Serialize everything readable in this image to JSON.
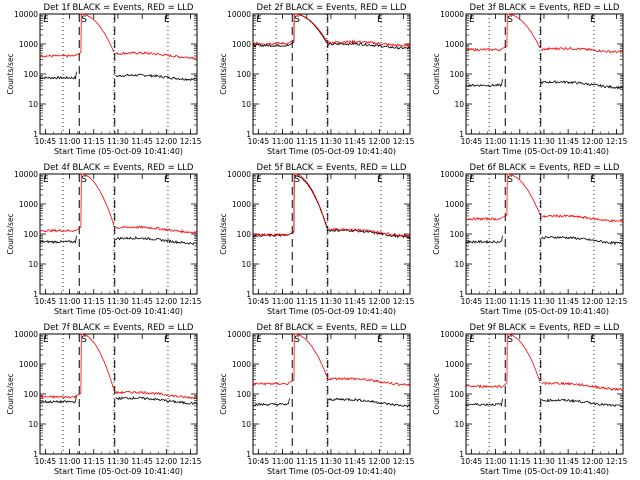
{
  "chart_data": [
    {
      "type": "line",
      "title": "Det 1f BLACK = Events, RED = LLD",
      "xlabel": "Start Time (05-Oct-09 10:41:40)",
      "ylabel": "Counts/sec",
      "series": [
        {
          "name": "Events",
          "color": "#000000",
          "pre": 75,
          "peak": null,
          "post": 85,
          "post_end": 75
        },
        {
          "name": "LLD",
          "color": "#ff0000",
          "pre": 400,
          "peak": 10000,
          "post": 470,
          "post_end": 400
        }
      ]
    },
    {
      "type": "line",
      "title": "Det 2f BLACK = Events, RED = LLD",
      "xlabel": "Start Time (05-Oct-09 10:41:40)",
      "ylabel": "Counts/sec",
      "series": [
        {
          "name": "Events",
          "color": "#000000",
          "pre": 900,
          "peak": 10000,
          "post": 950,
          "post_end": 820
        },
        {
          "name": "LLD",
          "color": "#ff0000",
          "pre": 1050,
          "peak": 10000,
          "post": 1100,
          "post_end": 1000
        }
      ]
    },
    {
      "type": "line",
      "title": "Det 3f BLACK = Events, RED = LLD",
      "xlabel": "Start Time (05-Oct-09 10:41:40)",
      "ylabel": "Counts/sec",
      "series": [
        {
          "name": "Events",
          "color": "#000000",
          "pre": 42,
          "peak": null,
          "post": 52,
          "post_end": 40
        },
        {
          "name": "LLD",
          "color": "#ff0000",
          "pre": 650,
          "peak": 10000,
          "post": 650,
          "post_end": 620
        }
      ]
    },
    {
      "type": "line",
      "title": "Det 4f BLACK = Events, RED = LLD",
      "xlabel": "Start Time (05-Oct-09 10:41:40)",
      "ylabel": "Counts/sec",
      "series": [
        {
          "name": "Events",
          "color": "#000000",
          "pre": 55,
          "peak": null,
          "post": 70,
          "post_end": 55
        },
        {
          "name": "LLD",
          "color": "#ff0000",
          "pre": 130,
          "peak": 10000,
          "post": 160,
          "post_end": 130
        }
      ]
    },
    {
      "type": "line",
      "title": "Det 5f BLACK = Events, RED = LLD",
      "xlabel": "Start Time (05-Oct-09 10:41:40)",
      "ylabel": "Counts/sec",
      "series": [
        {
          "name": "Events",
          "color": "#000000",
          "pre": 90,
          "peak": 9000,
          "post": 130,
          "post_end": 90
        },
        {
          "name": "LLD",
          "color": "#ff0000",
          "pre": 95,
          "peak": 10000,
          "post": 140,
          "post_end": 100
        }
      ]
    },
    {
      "type": "line",
      "title": "Det 6f BLACK = Events, RED = LLD",
      "xlabel": "Start Time (05-Oct-09 10:41:40)",
      "ylabel": "Counts/sec",
      "series": [
        {
          "name": "Events",
          "color": "#000000",
          "pre": 55,
          "peak": null,
          "post": 75,
          "post_end": 55
        },
        {
          "name": "LLD",
          "color": "#ff0000",
          "pre": 320,
          "peak": 10000,
          "post": 380,
          "post_end": 300
        }
      ]
    },
    {
      "type": "line",
      "title": "Det 7f BLACK = Events, RED = LLD",
      "xlabel": "Start Time (05-Oct-09 10:41:40)",
      "ylabel": "Counts/sec",
      "series": [
        {
          "name": "Events",
          "color": "#000000",
          "pre": 55,
          "peak": null,
          "post": 70,
          "post_end": 55
        },
        {
          "name": "LLD",
          "color": "#ff0000",
          "pre": 80,
          "peak": 10000,
          "post": 110,
          "post_end": 85
        }
      ]
    },
    {
      "type": "line",
      "title": "Det 8f BLACK = Events, RED = LLD",
      "xlabel": "Start Time (05-Oct-09 10:41:40)",
      "ylabel": "Counts/sec",
      "series": [
        {
          "name": "Events",
          "color": "#000000",
          "pre": 45,
          "peak": null,
          "post": 65,
          "post_end": 45
        },
        {
          "name": "LLD",
          "color": "#ff0000",
          "pre": 220,
          "peak": 10000,
          "post": 320,
          "post_end": 230
        }
      ]
    },
    {
      "type": "line",
      "title": "Det 9f BLACK = Events, RED = LLD",
      "xlabel": "Start Time (05-Oct-09 10:41:40)",
      "ylabel": "Counts/sec",
      "series": [
        {
          "name": "Events",
          "color": "#000000",
          "pre": 45,
          "peak": null,
          "post": 60,
          "post_end": 45
        },
        {
          "name": "LLD",
          "color": "#ff0000",
          "pre": 180,
          "peak": 10000,
          "post": 220,
          "post_end": 160
        }
      ]
    }
  ],
  "shared_axes": {
    "x_ticks": [
      "10:45",
      "11:00",
      "11:15",
      "11:30",
      "11:45",
      "12:00",
      "12:15"
    ],
    "x_range": [
      "10:41:40",
      "12:19"
    ],
    "y_ticks": [
      "1",
      "10",
      "100",
      "1000",
      "10000"
    ],
    "y_range": [
      1,
      10000
    ],
    "y_scale": "log",
    "dotted_markers": [
      "10:56",
      "11:27:30",
      "12:01"
    ],
    "dashed_markers": [
      "11:06",
      "11:28"
    ],
    "edge_labels": [
      "E",
      "S",
      "E"
    ]
  }
}
